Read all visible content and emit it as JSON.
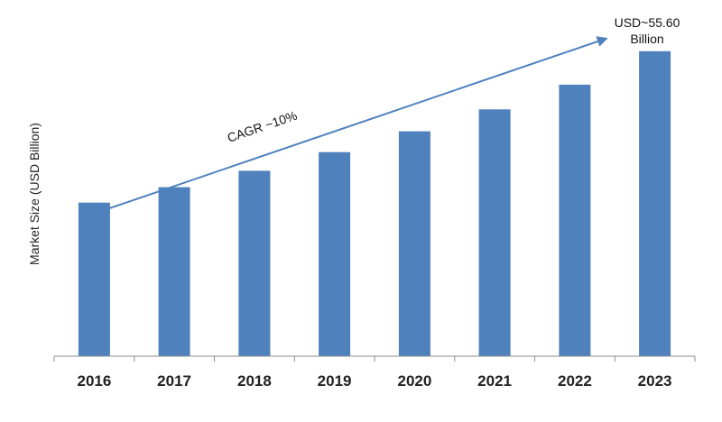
{
  "chart_data": {
    "type": "bar",
    "categories": [
      "2016",
      "2017",
      "2018",
      "2019",
      "2020",
      "2021",
      "2022",
      "2023"
    ],
    "values": [
      28.0,
      30.8,
      33.8,
      37.2,
      41.0,
      45.0,
      49.5,
      55.6
    ],
    "title": "",
    "xlabel": "",
    "ylabel": "Market Size (USD Billion)",
    "ylim": [
      0,
      60
    ],
    "grid": false,
    "legend": "none",
    "bar_color": "#4f81bd",
    "arrow_color": "#4f81bd",
    "annotations": {
      "cagr": "CAGR ~10%",
      "end_value_line1": "USD~55.60",
      "end_value_line2": "Billion"
    }
  }
}
